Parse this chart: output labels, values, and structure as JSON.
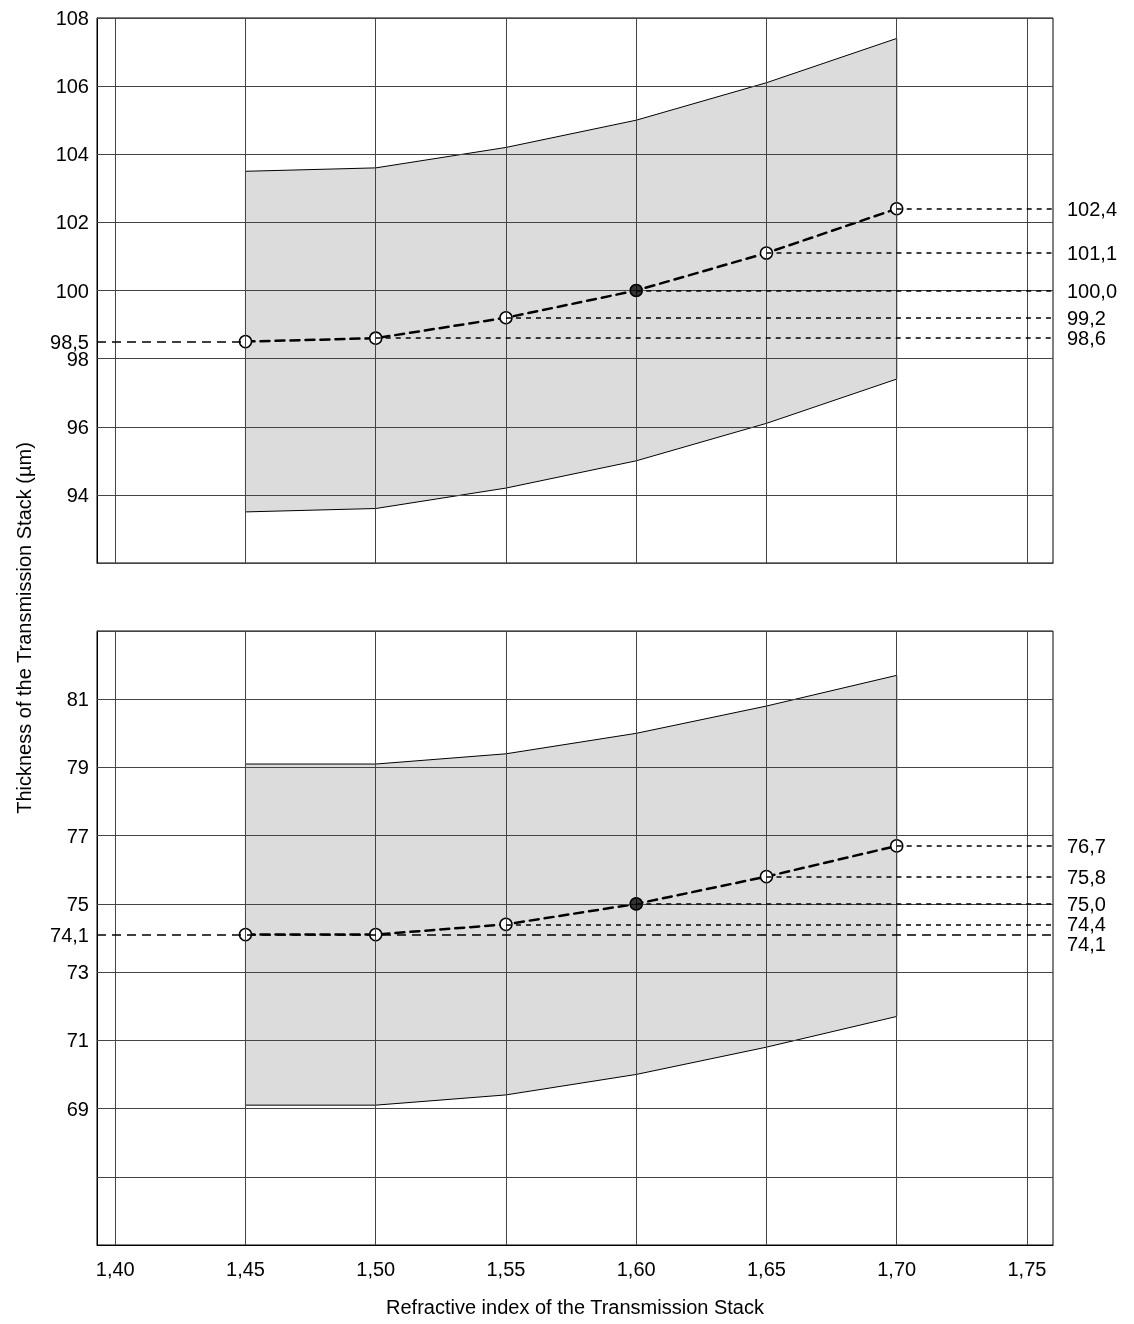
{
  "chart_data": [
    {
      "type": "line",
      "ylabel": "Thickness of the Transmission Stack (µm)",
      "x": [
        1.45,
        1.5,
        1.55,
        1.6,
        1.65,
        1.7
      ],
      "series": [
        {
          "color": "#000000",
          "values": [
            98.5,
            98.6,
            99.2,
            100.0,
            101.1,
            102.4
          ],
          "lower": [
            93.5,
            93.6,
            94.2,
            95.0,
            96.1,
            97.4
          ],
          "upper": [
            103.5,
            103.6,
            104.2,
            105.0,
            106.1,
            107.4
          ],
          "value_labels": [
            null,
            "98,6",
            "99,2",
            "100,0",
            "101,1",
            "102,4"
          ]
        },
        {
          "type": "scatter",
          "x": [
            1.6
          ],
          "color": "#000000",
          "values": [
            100.0
          ]
        }
      ],
      "xlim": [
        1.393,
        1.76
      ],
      "xticks": [
        {
          "value": 1.4,
          "label": null
        },
        {
          "value": 1.45,
          "label": null
        },
        {
          "value": 1.5,
          "label": null
        },
        {
          "value": 1.55,
          "label": null
        },
        {
          "value": 1.6,
          "label": null
        },
        {
          "value": 1.65,
          "label": null
        },
        {
          "value": 1.7,
          "label": null
        },
        {
          "value": 1.75,
          "label": null
        }
      ],
      "ylim": [
        92,
        108
      ],
      "yticks": [
        {
          "value": 92,
          "label": null
        },
        94,
        96,
        98,
        {
          "value": 98.5,
          "label": "98,5"
        },
        100,
        102,
        104,
        106,
        108
      ],
      "ref_lines": [
        {
          "axis": "y",
          "value": 98.5,
          "line_style": "dashed"
        }
      ],
      "grid": true,
      "tick_labels": "y",
      "marker": "circle",
      "line_style": "dashed"
    },
    {
      "type": "line",
      "xlabel": "Refractive index of the Transmission Stack",
      "x": [
        1.45,
        1.5,
        1.55,
        1.6,
        1.65,
        1.7
      ],
      "series": [
        {
          "color": "#000000",
          "values": [
            74.1,
            74.1,
            74.4,
            75.0,
            75.8,
            76.7
          ],
          "lower": [
            69.1,
            69.1,
            69.4,
            70.0,
            70.8,
            71.7
          ],
          "upper": [
            79.1,
            79.1,
            79.4,
            80.0,
            80.8,
            81.7
          ],
          "value_labels": [
            null,
            null,
            "74,4",
            "75,0",
            "75,8",
            "76,7"
          ]
        },
        {
          "type": "scatter",
          "x": [
            1.6
          ],
          "color": "#000000",
          "values": [
            75.0
          ]
        }
      ],
      "xlim": [
        1.393,
        1.76
      ],
      "xticks": [
        {
          "value": 1.4,
          "label": "1,40"
        },
        {
          "value": 1.45,
          "label": "1,45"
        },
        {
          "value": 1.5,
          "label": "1,50"
        },
        {
          "value": 1.55,
          "label": "1,55"
        },
        {
          "value": 1.6,
          "label": "1,60"
        },
        {
          "value": 1.65,
          "label": "1,65"
        },
        {
          "value": 1.7,
          "label": "1,70"
        },
        {
          "value": 1.75,
          "label": "1,75"
        }
      ],
      "ylim": [
        65,
        83
      ],
      "yticks": [
        {
          "value": 67,
          "label": null
        },
        69,
        71,
        73,
        {
          "value": 74.1,
          "label": "74,1"
        },
        75,
        77,
        79,
        81,
        {
          "value": 83,
          "label": null
        }
      ],
      "ref_lines": [
        {
          "axis": "y",
          "value": 74.1,
          "label": "74,1",
          "line_style": "dashed"
        }
      ],
      "grid": true,
      "marker": "circle",
      "line_style": "dashed"
    }
  ]
}
